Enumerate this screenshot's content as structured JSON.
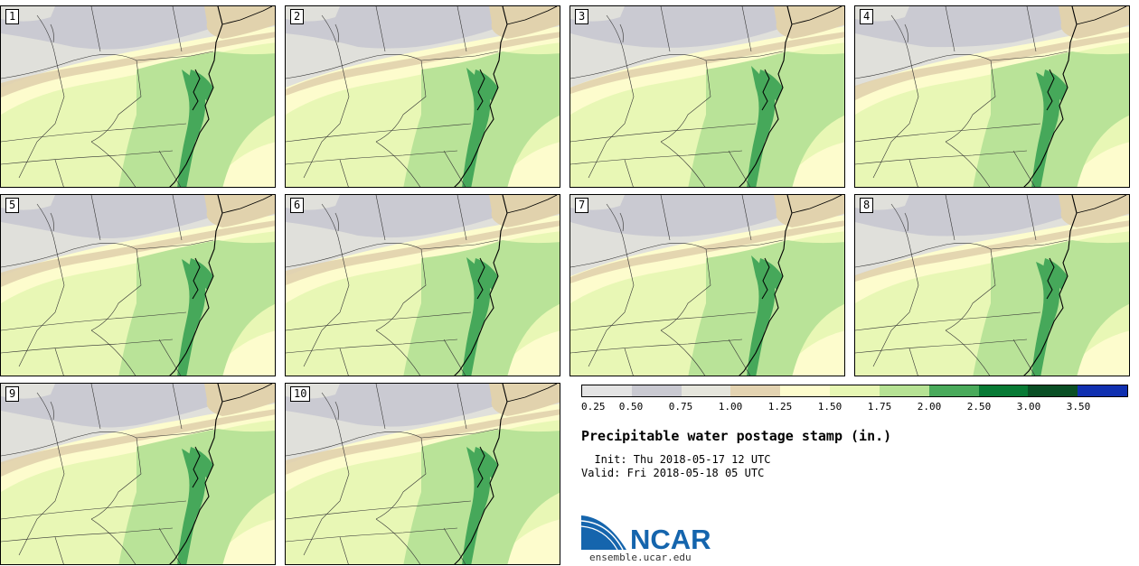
{
  "title": "Precipitable water postage stamp (in.)",
  "init_line": "  Init: Thu 2018-05-17 12 UTC",
  "valid_line": "Valid: Fri 2018-05-18 05 UTC",
  "logo_text": "NCAR",
  "site_url": "ensemble.ucar.edu",
  "members": [
    "1",
    "2",
    "3",
    "4",
    "5",
    "6",
    "7",
    "8",
    "9",
    "10"
  ],
  "legend": {
    "ticks": [
      "0.25",
      "0.50",
      "0.75",
      "1.00",
      "1.25",
      "1.50",
      "1.75",
      "2.00",
      "2.50",
      "3.00",
      "3.50"
    ],
    "colors": [
      "#e3e3e3",
      "#c9c9d1",
      "#e5e5dc",
      "#e3d3b1",
      "#fdfccd",
      "#e7f7b4",
      "#b6e294",
      "#49aa5b",
      "#087a35",
      "#0a4f25",
      "#1030b0"
    ]
  },
  "map_colors": {
    "dry_light": "#e0e0db",
    "dry_gray": "#cacad2",
    "tan": "#e1d2ad",
    "pale": "#fdfccd",
    "light_green": "#e8f7b5",
    "mid_green": "#b9e398",
    "dark_green": "#46a85a"
  }
}
